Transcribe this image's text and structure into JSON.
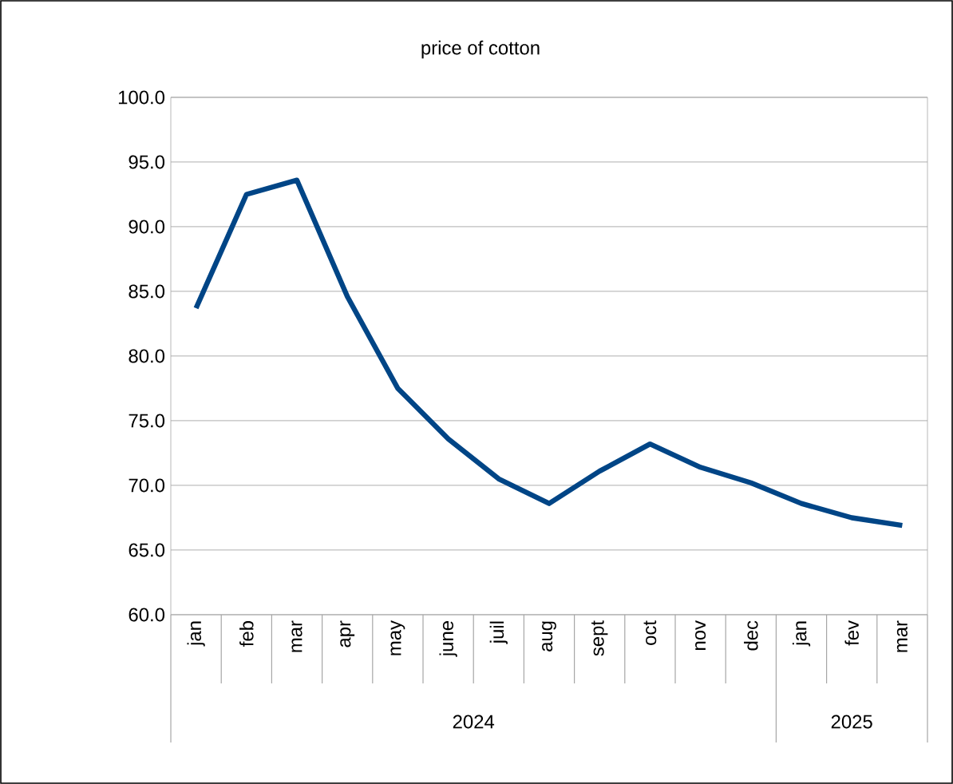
{
  "chart_data": {
    "type": "line",
    "title": "price of cotton",
    "categories": [
      "jan",
      "feb",
      "mar",
      "apr",
      "may",
      "june",
      "juil",
      "aug",
      "sept",
      "oct",
      "nov",
      "dec",
      "jan",
      "fev",
      "mar"
    ],
    "series": [
      {
        "color": "#004586",
        "values": [
          83.7,
          92.5,
          93.6,
          84.6,
          77.5,
          73.6,
          70.5,
          68.6,
          71.1,
          73.2,
          71.4,
          70.2,
          68.6,
          67.5,
          66.9
        ]
      }
    ],
    "ylim": [
      60,
      100
    ],
    "yticks": [
      {
        "value": 60,
        "label": "60.0"
      },
      {
        "value": 65,
        "label": "65.0"
      },
      {
        "value": 70,
        "label": "70.0"
      },
      {
        "value": 75,
        "label": "75.0"
      },
      {
        "value": 80,
        "label": "80.0"
      },
      {
        "value": 85,
        "label": "85.0"
      },
      {
        "value": 90,
        "label": "90.0"
      },
      {
        "value": 95,
        "label": "95.0"
      },
      {
        "value": 100,
        "label": "100.0"
      }
    ],
    "grid": "y",
    "marker": "none",
    "line_style": "solid",
    "annotations": [
      "2024",
      "2025"
    ]
  }
}
